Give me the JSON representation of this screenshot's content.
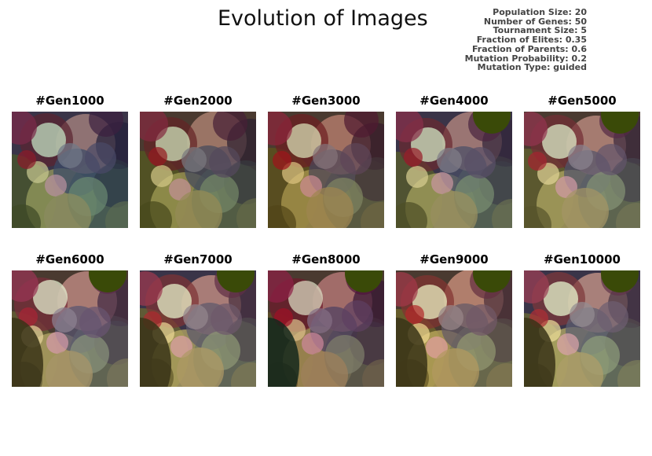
{
  "figure": {
    "title": "Evolution of Images"
  },
  "parameters": [
    "Population Size: 20",
    "Number of Genes: 50",
    "Tournament Size: 5",
    "Fraction of Elites: 0.35",
    "Fraction of Parents: 0.6",
    "Mutation Probability: 0.2",
    "Mutation Type: guided"
  ],
  "panels": [
    {
      "label": "#Gen1000"
    },
    {
      "label": "#Gen2000"
    },
    {
      "label": "#Gen3000"
    },
    {
      "label": "#Gen4000"
    },
    {
      "label": "#Gen5000"
    },
    {
      "label": "#Gen6000"
    },
    {
      "label": "#Gen7000"
    },
    {
      "label": "#Gen8000"
    },
    {
      "label": "#Gen9000"
    },
    {
      "label": "#Gen10000"
    }
  ]
}
